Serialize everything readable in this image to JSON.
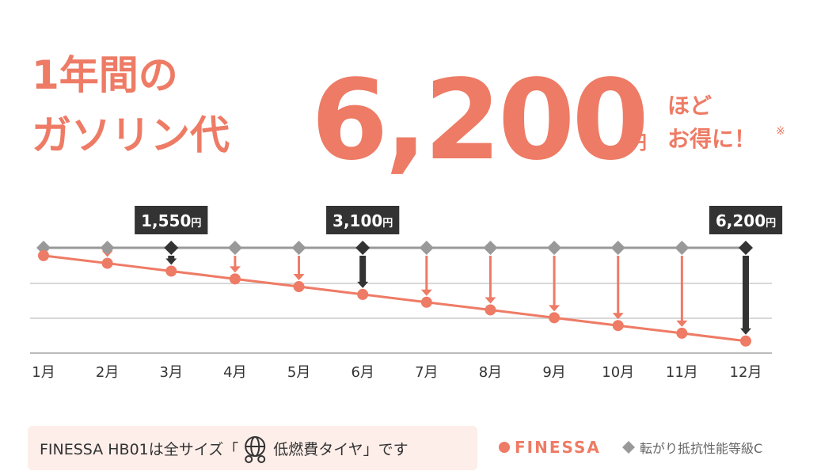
{
  "header": {
    "line1": "1年間の",
    "line2": "ガソリン代",
    "amount": "6,200",
    "unit": "円",
    "tail1": "ほど",
    "tail2": "お得に！",
    "note_mark": "※"
  },
  "chart_data": {
    "type": "line",
    "categories": [
      "1月",
      "2月",
      "3月",
      "4月",
      "5月",
      "6月",
      "7月",
      "8月",
      "9月",
      "10月",
      "11月",
      "12月"
    ],
    "series": [
      {
        "name": "FINESSA",
        "color": "#ee7b65",
        "values": [
          520,
          1030,
          1550,
          2070,
          2580,
          3100,
          3620,
          4130,
          4650,
          5170,
          5680,
          6200
        ]
      },
      {
        "name": "転がり抵抗性能等級C",
        "color": "#999999",
        "values": [
          0,
          0,
          0,
          0,
          0,
          0,
          0,
          0,
          0,
          0,
          0,
          0
        ]
      }
    ],
    "ylim": [
      0,
      7000
    ],
    "annotations": [
      {
        "x": "3月",
        "text": "1,550",
        "unit": "円"
      },
      {
        "x": "6月",
        "text": "3,100",
        "unit": "円"
      },
      {
        "x": "12月",
        "text": "6,200",
        "unit": "円"
      }
    ]
  },
  "footer": {
    "before": "FINESSA HB01は全サイズ「",
    "highlight": "低燃費タイヤ",
    "after": "」です"
  }
}
